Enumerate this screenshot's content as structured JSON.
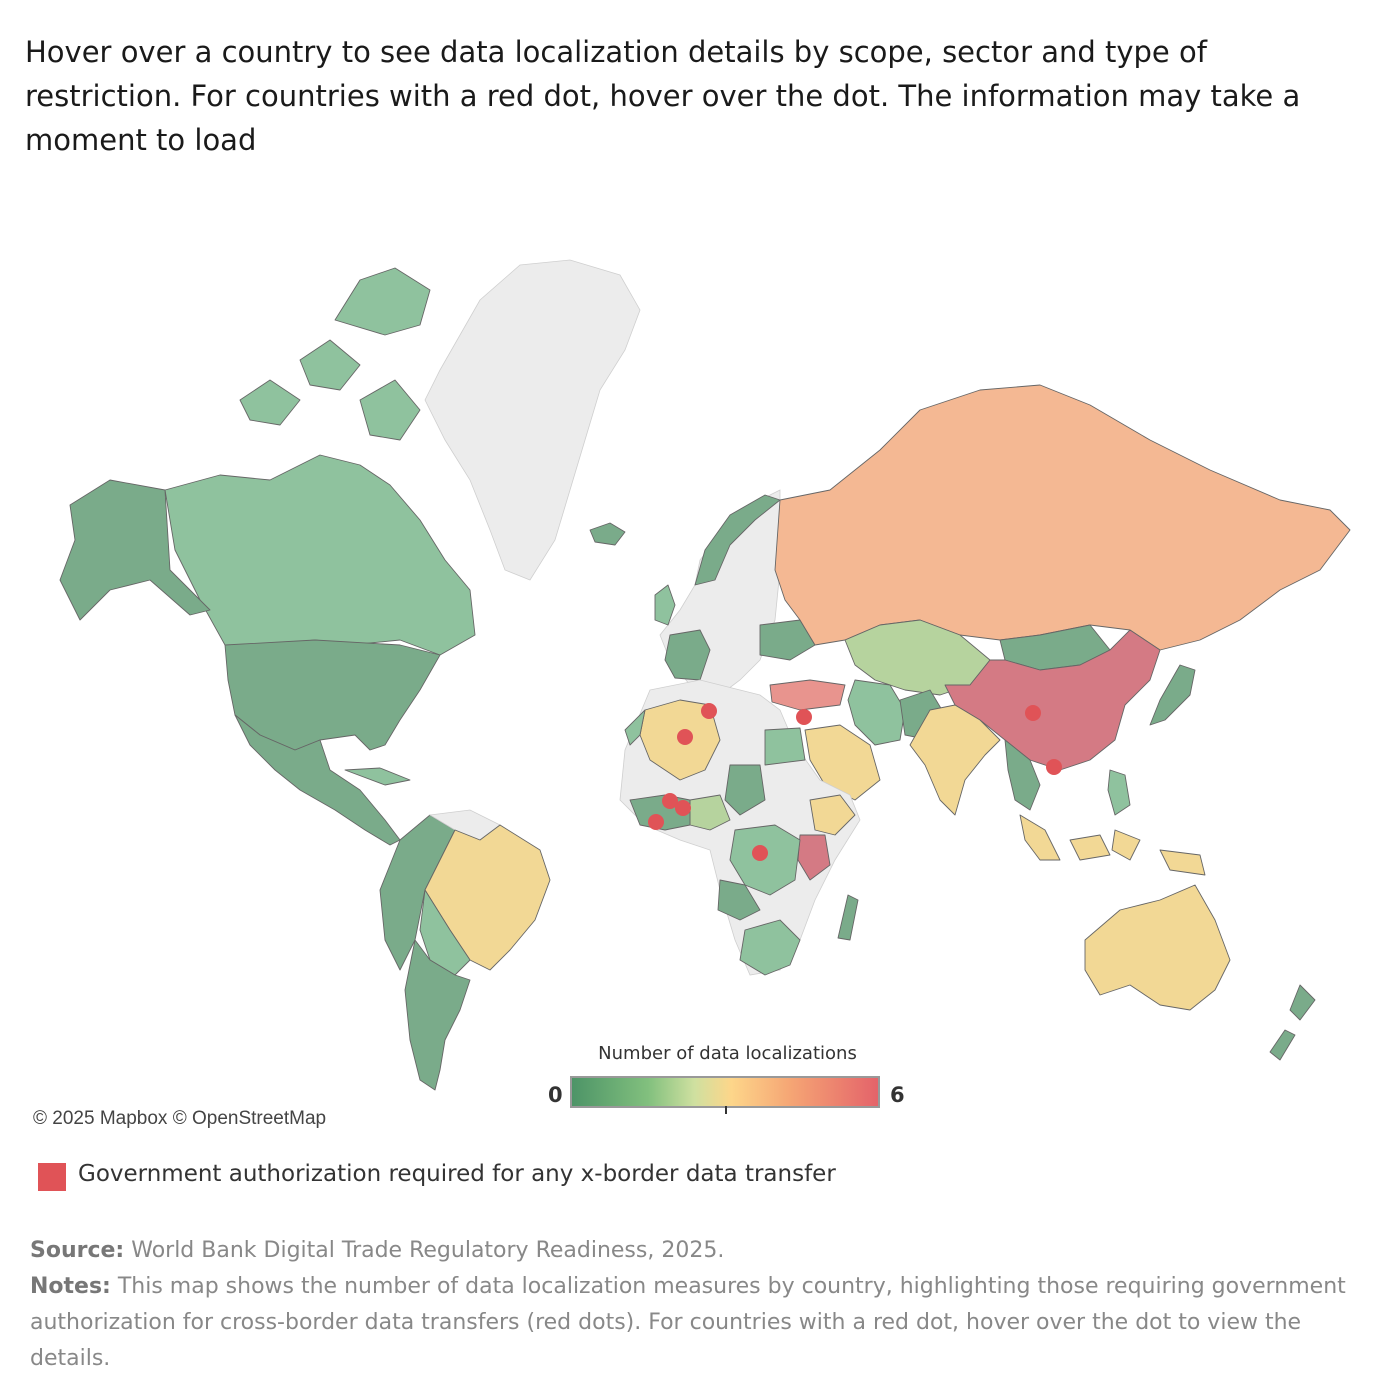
{
  "headline": "Hover over a country to see data localization details by scope, sector and type of restriction. For countries with a red dot, hover over the dot. The information may take a moment to load",
  "attribution": "© 2025 Mapbox © OpenStreetMap",
  "legend": {
    "title": "Number of data localizations",
    "min_label": "0",
    "max_label": "6",
    "scale_min": 0,
    "scale_max": 6,
    "colors": [
      "#4d9467",
      "#82c07e",
      "#cfe0a0",
      "#fdd68a",
      "#f5a474",
      "#e4636a"
    ]
  },
  "dot_legend": {
    "label": "Government authorization required for any x-border data transfer",
    "color": "#e05357"
  },
  "footnotes": {
    "source_label": "Source:",
    "source_text": " World Bank Digital Trade Regulatory Readiness, 2025.",
    "notes_label": "Notes:",
    "notes_text": " This map shows the number of data localization measures by country, highlighting those requiring government authorization for cross-border data transfers (red dots). For countries with a red dot, hover over the dot to view the details."
  },
  "map": {
    "basemap": "Mapbox",
    "colors": {
      "no_data": "#ececec",
      "level_0": "#7aab8a",
      "level_1": "#8fc29e",
      "level_2": "#b6d39e",
      "level_3": "#f2d895",
      "level_4": "#f4b893",
      "level_5": "#d47a84"
    }
  }
}
